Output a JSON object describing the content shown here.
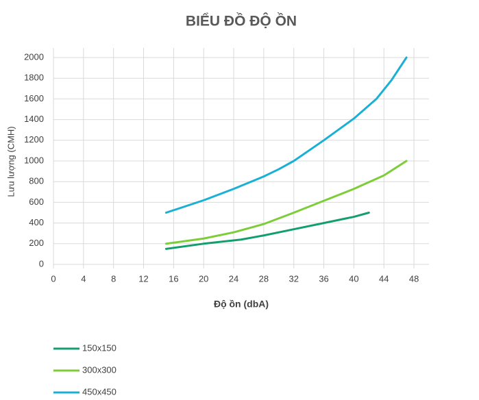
{
  "chart_data": {
    "type": "line",
    "title": "BIỂU ĐỒ ĐỘ ỒN",
    "x_label": "Độ ồn (dbA)",
    "y_label": "Lưu lượng (CMH)",
    "xlim": [
      0,
      50
    ],
    "xticks": [
      0,
      4,
      8,
      12,
      16,
      20,
      24,
      28,
      32,
      36,
      40,
      44,
      48
    ],
    "ylim": [
      0,
      2000
    ],
    "yticks": [
      0,
      200,
      400,
      600,
      800,
      1000,
      1200,
      1400,
      1600,
      1800,
      2000
    ],
    "grid": true,
    "legend": "bottom-left",
    "series": [
      {
        "name": "150x150",
        "color": "#149e6e",
        "x": [
          15,
          20,
          25,
          28,
          32,
          36,
          40,
          42
        ],
        "values": [
          150,
          200,
          240,
          280,
          340,
          400,
          460,
          500
        ]
      },
      {
        "name": "300x300",
        "color": "#7dcd38",
        "x": [
          15,
          20,
          24,
          28,
          32,
          36,
          40,
          44,
          47
        ],
        "values": [
          200,
          250,
          310,
          390,
          500,
          615,
          730,
          860,
          1000
        ]
      },
      {
        "name": "450x450",
        "color": "#1ab0d5",
        "x": [
          15,
          20,
          24,
          28,
          30,
          32,
          36,
          40,
          43,
          45,
          47
        ],
        "values": [
          500,
          620,
          730,
          850,
          920,
          1000,
          1200,
          1410,
          1600,
          1780,
          2000
        ]
      }
    ]
  }
}
